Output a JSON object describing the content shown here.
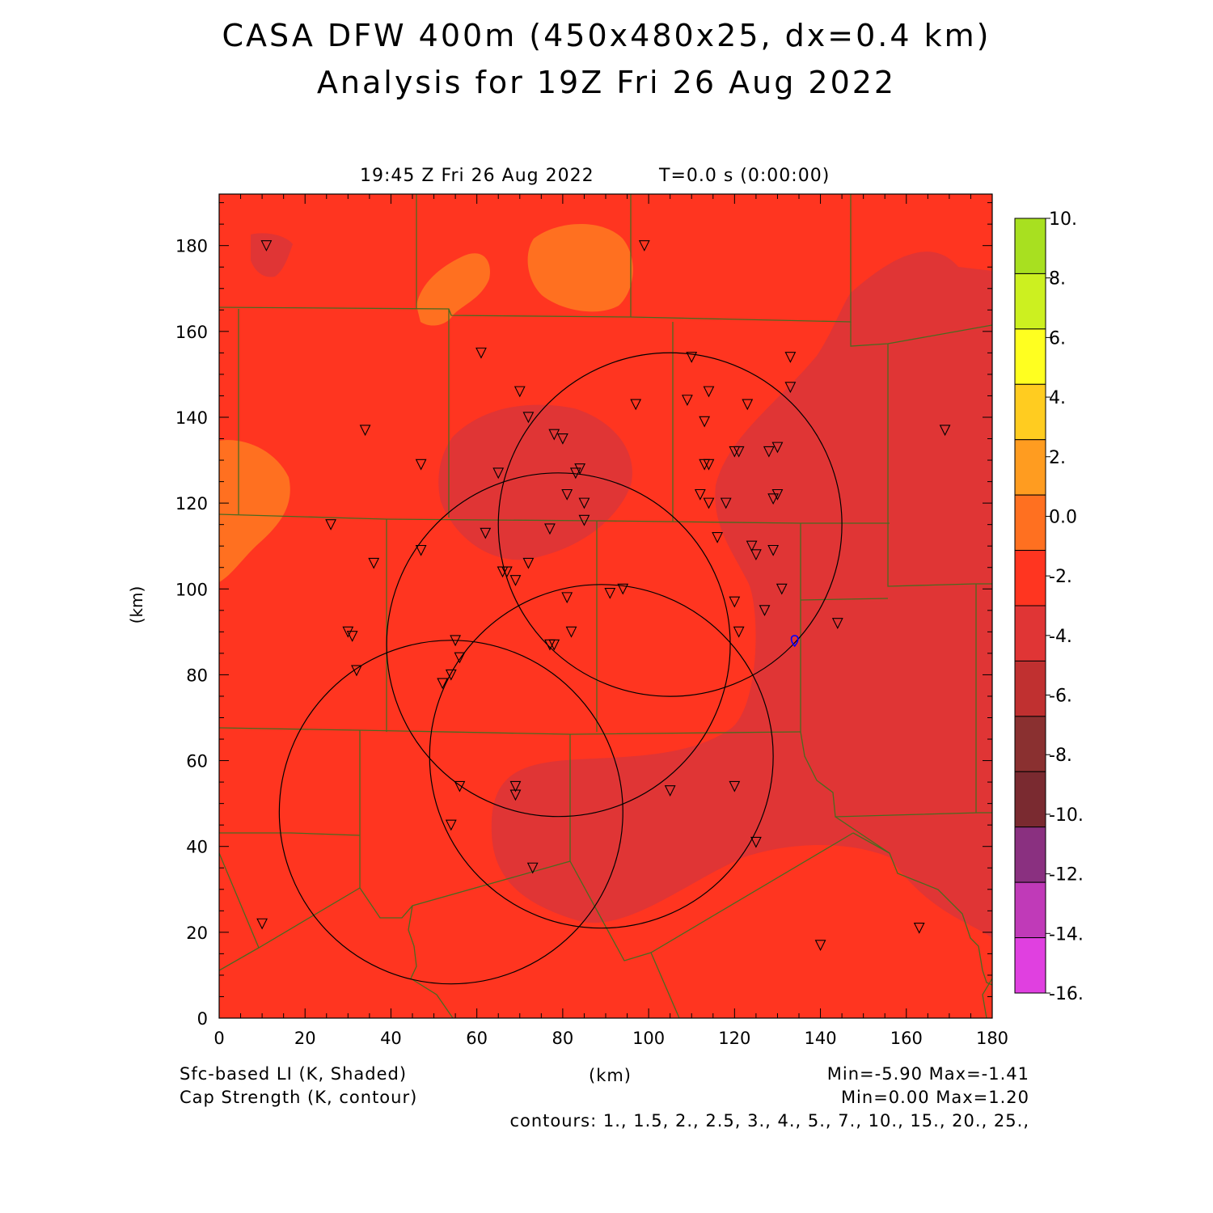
{
  "header": {
    "title_line1": "CASA DFW 400m (450x480x25, dx=0.4 km)",
    "title_line2": "Analysis for 19Z Fri 26 Aug 2022",
    "valid_time": "19:45 Z Fri 26 Aug 2022",
    "forecast_time": "T=0.0 s (0:00:00)"
  },
  "axes": {
    "xlabel": "(km)",
    "ylabel": "(km)",
    "xlim": [
      0,
      180
    ],
    "ylim": [
      0,
      192
    ],
    "x_ticks": [
      0,
      20,
      40,
      60,
      80,
      100,
      120,
      140,
      160,
      180
    ],
    "x_tick_labels": [
      "0",
      "20",
      "40",
      "60",
      "80",
      "100",
      "120",
      "140",
      "160",
      "180"
    ],
    "y_ticks": [
      0,
      20,
      40,
      60,
      80,
      100,
      120,
      140,
      160,
      180
    ],
    "y_tick_labels": [
      "0",
      "20",
      "40",
      "60",
      "80",
      "100",
      "120",
      "140",
      "160",
      "180"
    ]
  },
  "colorbar": {
    "labels": [
      "10.",
      "8.",
      "6.",
      "4.",
      "2.",
      "0.0",
      "-2.",
      "-4.",
      "-6.",
      "-8.",
      "-10.",
      "-12.",
      "-14.",
      "-16."
    ],
    "colors": [
      "#a8e020",
      "#ccf020",
      "#ffff20",
      "#ffcc20",
      "#ff9c20",
      "#ff7020",
      "#ff3520",
      "#e03535",
      "#c03030",
      "#8a3030",
      "#7a2a30",
      "#8a3080",
      "#c03ab8",
      "#e040e0"
    ]
  },
  "colors": {
    "field_base": "#ff3520",
    "field_minus4": "#e03535",
    "field_zero": "#ff7020",
    "field_plus": "#ff9c20",
    "county_line": "#4a6a20",
    "radar_ring": "#000000",
    "marker": "#0000ff"
  },
  "footer": {
    "left_line1": "Sfc-based LI (K, Shaded)",
    "left_line2": "Cap Strength (K, contour)",
    "center": "(km)",
    "right_line1": "Min=-5.90 Max=-1.41",
    "right_line2": "Min=0.00 Max=1.20",
    "contours": "contours: 1., 1.5, 2., 2.5, 3., 4., 5., 7., 10., 15., 20., 25.,"
  },
  "map_data": {
    "stations": [
      [
        11,
        180
      ],
      [
        99,
        180
      ],
      [
        61,
        155
      ],
      [
        110,
        154
      ],
      [
        133,
        154
      ],
      [
        70,
        146
      ],
      [
        114,
        146
      ],
      [
        133,
        147
      ],
      [
        109,
        144
      ],
      [
        123,
        143
      ],
      [
        97,
        143
      ],
      [
        34,
        137
      ],
      [
        72,
        140
      ],
      [
        113,
        139
      ],
      [
        78,
        136
      ],
      [
        80,
        135
      ],
      [
        169,
        137
      ],
      [
        121,
        132
      ],
      [
        128,
        132
      ],
      [
        130,
        133
      ],
      [
        120,
        132
      ],
      [
        47,
        129
      ],
      [
        65,
        127
      ],
      [
        113,
        129
      ],
      [
        114,
        129
      ],
      [
        84,
        128
      ],
      [
        83,
        127
      ],
      [
        81,
        122
      ],
      [
        85,
        120
      ],
      [
        112,
        122
      ],
      [
        114,
        120
      ],
      [
        118,
        120
      ],
      [
        129,
        121
      ],
      [
        130,
        122
      ],
      [
        26,
        115
      ],
      [
        85,
        116
      ],
      [
        62,
        113
      ],
      [
        77,
        114
      ],
      [
        116,
        112
      ],
      [
        124,
        110
      ],
      [
        125,
        108
      ],
      [
        129,
        109
      ],
      [
        47,
        109
      ],
      [
        36,
        106
      ],
      [
        67,
        104
      ],
      [
        72,
        106
      ],
      [
        66,
        104
      ],
      [
        69,
        102
      ],
      [
        131,
        100
      ],
      [
        81,
        98
      ],
      [
        91,
        99
      ],
      [
        94,
        100
      ],
      [
        120,
        97
      ],
      [
        127,
        95
      ],
      [
        144,
        92
      ],
      [
        30,
        90
      ],
      [
        31,
        89
      ],
      [
        82,
        90
      ],
      [
        121,
        90
      ],
      [
        55,
        88
      ],
      [
        77,
        87
      ],
      [
        78,
        87
      ],
      [
        56,
        84
      ],
      [
        32,
        81
      ],
      [
        54,
        80
      ],
      [
        52,
        78
      ],
      [
        120,
        54
      ],
      [
        56,
        54
      ],
      [
        69,
        54
      ],
      [
        105,
        53
      ],
      [
        69,
        52
      ],
      [
        54,
        45
      ],
      [
        125,
        41
      ],
      [
        73,
        35
      ],
      [
        10,
        22
      ],
      [
        163,
        21
      ],
      [
        140,
        17
      ]
    ],
    "radar_rings": [
      {
        "center": [
          105,
          115
        ],
        "radius": 40
      },
      {
        "center": [
          79,
          87
        ],
        "radius": 40
      },
      {
        "center": [
          89,
          61
        ],
        "radius": 40
      },
      {
        "center": [
          54,
          48
        ],
        "radius": 40
      }
    ],
    "blue_marker": [
      134,
      88
    ]
  }
}
